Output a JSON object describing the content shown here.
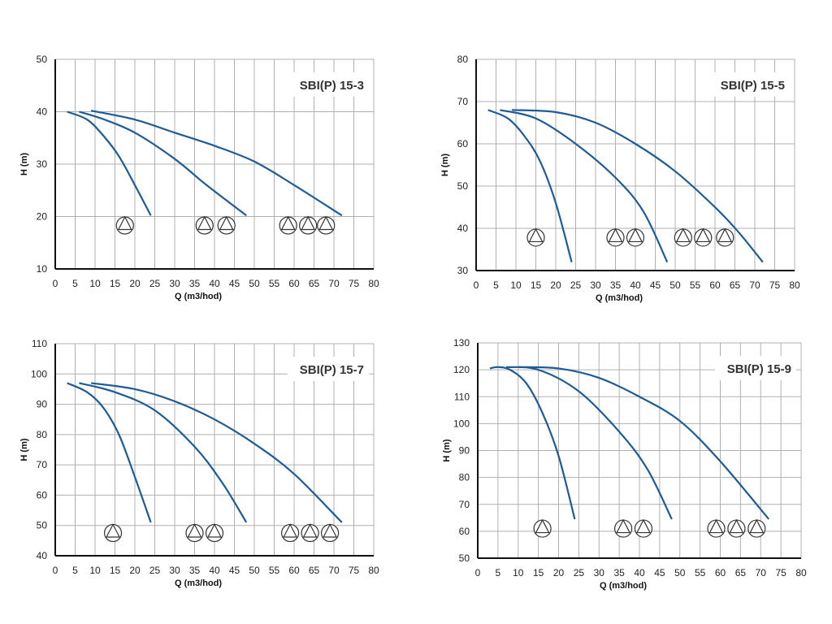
{
  "colors": {
    "curve": "#1f5b96",
    "grid": "#b0b0b0",
    "axis": "#111111",
    "marker": "#333333"
  },
  "chart_data": [
    {
      "type": "line",
      "title": "SBI(P) 15-3",
      "xlabel": "Q (m3/hod)",
      "ylabel": "H (m)",
      "xlim": [
        0,
        80
      ],
      "ylim": [
        10,
        50
      ],
      "xstep": 5,
      "ystep": 10,
      "grid": true,
      "series": [
        {
          "name": "1 pump",
          "points": [
            [
              3,
              40
            ],
            [
              8,
              38.5
            ],
            [
              12,
              35.5
            ],
            [
              16,
              31.5
            ],
            [
              20,
              26
            ],
            [
              24,
              20.2
            ]
          ]
        },
        {
          "name": "2 pumps",
          "points": [
            [
              6,
              40
            ],
            [
              12,
              38.6
            ],
            [
              20,
              36
            ],
            [
              30,
              31
            ],
            [
              38,
              26
            ],
            [
              48,
              20.2
            ]
          ]
        },
        {
          "name": "3 pumps",
          "points": [
            [
              9,
              40.2
            ],
            [
              20,
              38.5
            ],
            [
              30,
              36
            ],
            [
              40,
              33.5
            ],
            [
              50,
              30.5
            ],
            [
              60,
              26
            ],
            [
              72,
              20.2
            ]
          ]
        }
      ],
      "pump_markers": {
        "h": 18.3,
        "groups": [
          [
            17.5
          ],
          [
            37.5,
            43
          ],
          [
            58.5,
            63.5,
            68
          ]
        ]
      }
    },
    {
      "type": "line",
      "title": "SBI(P) 15-5",
      "xlabel": "Q (m3/hod)",
      "ylabel": "H (m)",
      "xlim": [
        0,
        80
      ],
      "ylim": [
        30,
        80
      ],
      "xstep": 5,
      "ystep": 10,
      "grid": true,
      "series": [
        {
          "name": "1 pump",
          "points": [
            [
              3,
              68
            ],
            [
              8,
              66
            ],
            [
              12,
              62
            ],
            [
              16,
              56
            ],
            [
              20,
              46
            ],
            [
              24,
              32
            ]
          ]
        },
        {
          "name": "2 pumps",
          "points": [
            [
              6,
              68
            ],
            [
              15,
              66
            ],
            [
              25,
              60
            ],
            [
              35,
              52
            ],
            [
              42,
              44
            ],
            [
              48,
              32
            ]
          ]
        },
        {
          "name": "3 pumps",
          "points": [
            [
              9,
              68
            ],
            [
              20,
              67.5
            ],
            [
              30,
              65
            ],
            [
              40,
              60
            ],
            [
              50,
              53.5
            ],
            [
              60,
              45
            ],
            [
              66,
              39
            ],
            [
              72,
              32
            ]
          ]
        }
      ],
      "pump_markers": {
        "h": 37.8,
        "groups": [
          [
            15
          ],
          [
            35,
            40
          ],
          [
            52,
            57,
            62.5
          ]
        ]
      }
    },
    {
      "type": "line",
      "title": "SBI(P) 15-7",
      "xlabel": "Q (m3/hod)",
      "ylabel": "H (m)",
      "xlim": [
        0,
        80
      ],
      "ylim": [
        40,
        110
      ],
      "xstep": 5,
      "ystep": 10,
      "grid": true,
      "series": [
        {
          "name": "1 pump",
          "points": [
            [
              3,
              97
            ],
            [
              8,
              94
            ],
            [
              12,
              89
            ],
            [
              16,
              80
            ],
            [
              20,
              66
            ],
            [
              24,
              51
            ]
          ]
        },
        {
          "name": "2 pumps",
          "points": [
            [
              6,
              97
            ],
            [
              15,
              94
            ],
            [
              25,
              88
            ],
            [
              35,
              76
            ],
            [
              42,
              64
            ],
            [
              48,
              51
            ]
          ]
        },
        {
          "name": "3 pumps",
          "points": [
            [
              9,
              97
            ],
            [
              20,
              95
            ],
            [
              30,
              91
            ],
            [
              40,
              85
            ],
            [
              50,
              77
            ],
            [
              60,
              67
            ],
            [
              72,
              51
            ]
          ]
        }
      ],
      "pump_markers": {
        "h": 47.5,
        "groups": [
          [
            14.5
          ],
          [
            35,
            40
          ],
          [
            59,
            64,
            69
          ]
        ]
      }
    },
    {
      "type": "line",
      "title": "SBI(P) 15-9",
      "xlabel": "Q (m3/hod)",
      "ylabel": "H (m)",
      "xlim": [
        0,
        80
      ],
      "ylim": [
        50,
        130
      ],
      "xstep": 5,
      "ystep": 10,
      "grid": true,
      "series": [
        {
          "name": "1 pump",
          "points": [
            [
              3,
              120.5
            ],
            [
              5,
              121
            ],
            [
              8,
              120
            ],
            [
              12,
              115
            ],
            [
              16,
              104
            ],
            [
              20,
              88
            ],
            [
              24,
              64.5
            ]
          ]
        },
        {
          "name": "2 pumps",
          "points": [
            [
              7,
              121
            ],
            [
              15,
              120
            ],
            [
              25,
              112
            ],
            [
              35,
              97
            ],
            [
              42,
              83
            ],
            [
              48,
              64.5
            ]
          ]
        },
        {
          "name": "3 pumps",
          "points": [
            [
              10,
              121
            ],
            [
              20,
              120.5
            ],
            [
              30,
              117
            ],
            [
              40,
              110
            ],
            [
              50,
              101
            ],
            [
              60,
              86
            ],
            [
              72,
              64.5
            ]
          ]
        }
      ],
      "pump_markers": {
        "h": 61,
        "groups": [
          [
            16
          ],
          [
            36,
            41
          ],
          [
            59,
            64,
            69
          ]
        ]
      }
    }
  ]
}
